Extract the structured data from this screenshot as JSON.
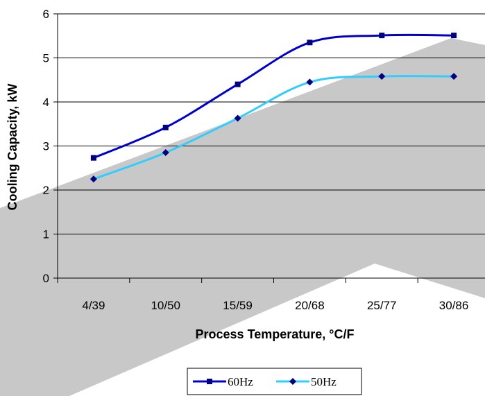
{
  "chart_data": {
    "type": "line",
    "categories": [
      "4/39",
      "10/50",
      "15/59",
      "20/68",
      "25/77",
      "30/86"
    ],
    "series": [
      {
        "name": "60Hz",
        "values": [
          2.73,
          3.42,
          4.4,
          5.35,
          5.51,
          5.51
        ],
        "color": "#0000cc",
        "marker": "square"
      },
      {
        "name": "50Hz",
        "values": [
          2.25,
          2.85,
          3.63,
          4.45,
          4.58,
          4.58
        ],
        "color": "#33ccff",
        "marker": "diamond"
      }
    ],
    "xlabel": "Process Temperature, °C/F",
    "ylabel": "Cooling Capacity, kW",
    "ylim": [
      0,
      6
    ],
    "yticks": [
      0,
      1,
      2,
      3,
      4,
      5,
      6
    ],
    "grid": "horizontal",
    "legend_position": "bottom-center",
    "background_color": "#c8c8c8"
  }
}
